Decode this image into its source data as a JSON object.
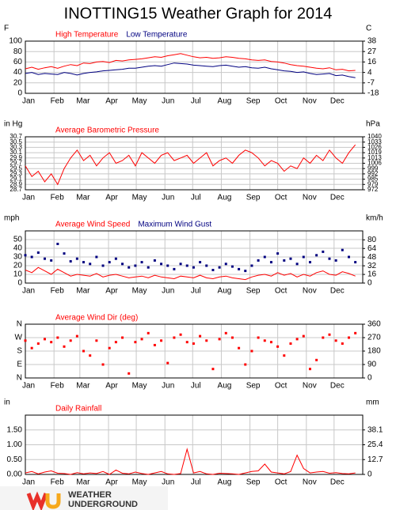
{
  "page": {
    "title": "INOTTING15 Weather Graph for 2014",
    "logo_top": "WEATHER",
    "logo_bottom": "UNDERGROUND"
  },
  "chart_data": [
    {
      "type": "line",
      "ylabel": "F",
      "y2label": "C",
      "x": [
        1,
        8,
        15,
        22,
        29,
        36,
        43,
        50,
        57,
        64,
        71,
        78,
        85,
        92,
        99,
        106,
        113,
        120,
        127,
        134,
        141,
        148,
        155,
        162,
        169,
        176,
        183,
        190,
        197,
        204,
        211,
        218,
        225,
        232,
        239,
        246,
        253,
        260,
        267,
        274,
        281,
        288,
        295,
        302,
        309,
        316,
        323,
        330,
        337,
        344,
        351,
        358
      ],
      "xlim": [
        1,
        366
      ],
      "xticks": [
        {
          "value": 1,
          "label": "Jan"
        },
        {
          "value": 32,
          "label": "Feb"
        },
        {
          "value": 60,
          "label": "Mar"
        },
        {
          "value": 91,
          "label": "Apr"
        },
        {
          "value": 121,
          "label": "May"
        },
        {
          "value": 152,
          "label": "Jun"
        },
        {
          "value": 182,
          "label": "Jul"
        },
        {
          "value": 213,
          "label": "Aug"
        },
        {
          "value": 244,
          "label": "Sep"
        },
        {
          "value": 274,
          "label": "Oct"
        },
        {
          "value": 305,
          "label": "Nov"
        },
        {
          "value": 335,
          "label": "Dec"
        }
      ],
      "ylim": [
        0,
        100
      ],
      "yticks": [
        0,
        20,
        40,
        60,
        80,
        100
      ],
      "y2lim": [
        -17.8,
        37.8
      ],
      "y2ticks": [
        {
          "value": -17.8,
          "label": "-18"
        },
        {
          "value": -6.7,
          "label": "-7"
        },
        {
          "value": 4.4,
          "label": "4"
        },
        {
          "value": 15.6,
          "label": "16"
        },
        {
          "value": 26.7,
          "label": "27"
        },
        {
          "value": 37.8,
          "label": "38"
        }
      ],
      "grid": true,
      "series": [
        {
          "name": "High Temperature",
          "color": "#ff0000",
          "values": [
            47,
            50,
            46,
            49,
            51,
            48,
            52,
            55,
            53,
            58,
            57,
            60,
            61,
            59,
            63,
            62,
            64,
            65,
            66,
            68,
            70,
            69,
            72,
            74,
            76,
            73,
            70,
            68,
            69,
            67,
            68,
            70,
            69,
            67,
            66,
            64,
            63,
            64,
            61,
            60,
            58,
            55,
            53,
            52,
            50,
            48,
            47,
            49,
            45,
            46,
            43,
            44
          ]
        },
        {
          "name": "Low Temperature",
          "color": "#000080",
          "values": [
            38,
            40,
            36,
            38,
            37,
            36,
            40,
            38,
            35,
            38,
            40,
            41,
            43,
            44,
            45,
            46,
            48,
            48,
            50,
            52,
            53,
            52,
            55,
            58,
            57,
            56,
            54,
            53,
            52,
            51,
            53,
            54,
            52,
            50,
            51,
            49,
            48,
            50,
            47,
            45,
            43,
            42,
            40,
            41,
            38,
            36,
            37,
            38,
            34,
            35,
            32,
            30
          ]
        }
      ]
    },
    {
      "type": "line",
      "ylabel": "in Hg",
      "y2label": "hPa",
      "x": [
        1,
        8,
        15,
        22,
        29,
        36,
        43,
        50,
        57,
        64,
        71,
        78,
        85,
        92,
        99,
        106,
        113,
        120,
        127,
        134,
        141,
        148,
        155,
        162,
        169,
        176,
        183,
        190,
        197,
        204,
        211,
        218,
        225,
        232,
        239,
        246,
        253,
        260,
        267,
        274,
        281,
        288,
        295,
        302,
        309,
        316,
        323,
        330,
        337,
        344,
        351,
        358
      ],
      "xlim": [
        1,
        366
      ],
      "xticks": [
        {
          "value": 1,
          "label": "Jan"
        },
        {
          "value": 32,
          "label": "Feb"
        },
        {
          "value": 60,
          "label": "Mar"
        },
        {
          "value": 91,
          "label": "Apr"
        },
        {
          "value": 121,
          "label": "May"
        },
        {
          "value": 152,
          "label": "Jun"
        },
        {
          "value": 182,
          "label": "Jul"
        },
        {
          "value": 213,
          "label": "Aug"
        },
        {
          "value": 244,
          "label": "Sep"
        },
        {
          "value": 274,
          "label": "Oct"
        },
        {
          "value": 305,
          "label": "Nov"
        },
        {
          "value": 335,
          "label": "Dec"
        }
      ],
      "ylim": [
        28.7,
        30.7
      ],
      "yticks": [
        28.7,
        28.9,
        29.1,
        29.3,
        29.5,
        29.7,
        29.9,
        30.1,
        30.3,
        30.5,
        30.7
      ],
      "y2lim": [
        971.9,
        1039.6
      ],
      "y2ticks": [
        {
          "value": 971.9,
          "label": "972"
        },
        {
          "value": 978.7,
          "label": "979"
        },
        {
          "value": 985.4,
          "label": "985"
        },
        {
          "value": 992.2,
          "label": "992"
        },
        {
          "value": 999.0,
          "label": "999"
        },
        {
          "value": 1005.8,
          "label": "1006"
        },
        {
          "value": 1012.5,
          "label": "1013"
        },
        {
          "value": 1019.3,
          "label": "1019"
        },
        {
          "value": 1026.1,
          "label": "1026"
        },
        {
          "value": 1032.8,
          "label": "1033"
        },
        {
          "value": 1039.6,
          "label": "1040"
        }
      ],
      "grid": true,
      "series": [
        {
          "name": "Average Barometric Pressure",
          "color": "#ff0000",
          "values": [
            29.6,
            29.2,
            29.4,
            29.0,
            29.3,
            28.9,
            29.5,
            29.9,
            30.2,
            29.8,
            30.0,
            29.6,
            29.9,
            30.1,
            29.7,
            29.8,
            30.0,
            29.6,
            30.1,
            29.9,
            29.7,
            30.0,
            30.1,
            29.8,
            29.9,
            30.0,
            29.7,
            29.9,
            30.1,
            29.6,
            29.8,
            29.9,
            29.7,
            30.0,
            30.2,
            30.1,
            29.9,
            29.6,
            29.8,
            29.7,
            29.4,
            29.6,
            29.5,
            29.9,
            29.7,
            30.0,
            29.8,
            30.2,
            29.9,
            29.7,
            30.1,
            30.4
          ]
        }
      ]
    },
    {
      "type": "line",
      "ylabel": "mph",
      "y2label": "km/h",
      "x": [
        1,
        8,
        15,
        22,
        29,
        36,
        43,
        50,
        57,
        64,
        71,
        78,
        85,
        92,
        99,
        106,
        113,
        120,
        127,
        134,
        141,
        148,
        155,
        162,
        169,
        176,
        183,
        190,
        197,
        204,
        211,
        218,
        225,
        232,
        239,
        246,
        253,
        260,
        267,
        274,
        281,
        288,
        295,
        302,
        309,
        316,
        323,
        330,
        337,
        344,
        351,
        358
      ],
      "xlim": [
        1,
        366
      ],
      "xticks": [
        {
          "value": 1,
          "label": "Jan"
        },
        {
          "value": 32,
          "label": "Feb"
        },
        {
          "value": 60,
          "label": "Mar"
        },
        {
          "value": 91,
          "label": "Apr"
        },
        {
          "value": 121,
          "label": "May"
        },
        {
          "value": 152,
          "label": "Jun"
        },
        {
          "value": 182,
          "label": "Jul"
        },
        {
          "value": 213,
          "label": "Aug"
        },
        {
          "value": 244,
          "label": "Sep"
        },
        {
          "value": 274,
          "label": "Oct"
        },
        {
          "value": 305,
          "label": "Nov"
        },
        {
          "value": 335,
          "label": "Dec"
        }
      ],
      "ylim": [
        0,
        60
      ],
      "yticks": [
        0,
        10,
        20,
        30,
        40,
        50
      ],
      "y2lim": [
        0,
        96.6
      ],
      "y2ticks": [
        0,
        16,
        32,
        48,
        64,
        80
      ],
      "grid": true,
      "series": [
        {
          "name": "Average Wind Speed",
          "color": "#ff0000",
          "type": "line",
          "values": [
            15,
            12,
            18,
            14,
            10,
            16,
            12,
            8,
            10,
            9,
            8,
            11,
            7,
            9,
            10,
            8,
            6,
            7,
            8,
            6,
            9,
            7,
            6,
            5,
            8,
            7,
            6,
            9,
            6,
            5,
            7,
            8,
            6,
            5,
            4,
            7,
            9,
            10,
            8,
            12,
            9,
            11,
            7,
            10,
            8,
            12,
            14,
            10,
            9,
            13,
            11,
            8
          ]
        },
        {
          "name": "Maximum Wind Gust",
          "color": "#000080",
          "type": "scatter",
          "values": [
            32,
            30,
            35,
            28,
            26,
            45,
            34,
            25,
            28,
            24,
            22,
            30,
            20,
            24,
            28,
            22,
            18,
            20,
            24,
            18,
            26,
            22,
            20,
            16,
            22,
            20,
            18,
            24,
            20,
            15,
            18,
            22,
            19,
            16,
            14,
            20,
            26,
            30,
            24,
            34,
            26,
            28,
            22,
            30,
            24,
            32,
            36,
            28,
            26,
            38,
            30,
            24
          ]
        }
      ]
    },
    {
      "type": "scatter",
      "x": [
        1,
        8,
        15,
        22,
        29,
        36,
        43,
        50,
        57,
        64,
        71,
        78,
        85,
        92,
        99,
        106,
        113,
        120,
        127,
        134,
        141,
        148,
        155,
        162,
        169,
        176,
        183,
        190,
        197,
        204,
        211,
        218,
        225,
        232,
        239,
        246,
        253,
        260,
        267,
        274,
        281,
        288,
        295,
        302,
        309,
        316,
        323,
        330,
        337,
        344,
        351,
        358
      ],
      "xlim": [
        1,
        366
      ],
      "xticks": [
        {
          "value": 1,
          "label": "Jan"
        },
        {
          "value": 32,
          "label": "Feb"
        },
        {
          "value": 60,
          "label": "Mar"
        },
        {
          "value": 91,
          "label": "Apr"
        },
        {
          "value": 121,
          "label": "May"
        },
        {
          "value": 152,
          "label": "Jun"
        },
        {
          "value": 182,
          "label": "Jul"
        },
        {
          "value": 213,
          "label": "Aug"
        },
        {
          "value": 244,
          "label": "Sep"
        },
        {
          "value": 274,
          "label": "Oct"
        },
        {
          "value": 305,
          "label": "Nov"
        },
        {
          "value": 335,
          "label": "Dec"
        }
      ],
      "ylim": [
        0,
        360
      ],
      "yticks": [
        {
          "value": 0,
          "label": "N"
        },
        {
          "value": 90,
          "label": "E"
        },
        {
          "value": 180,
          "label": "S"
        },
        {
          "value": 270,
          "label": "W"
        },
        {
          "value": 360,
          "label": "N"
        }
      ],
      "y2lim": [
        0,
        360
      ],
      "y2ticks": [
        0,
        90,
        180,
        270,
        360
      ],
      "grid": true,
      "series": [
        {
          "name": "Average Wind Dir (deg)",
          "color": "#ff0000",
          "values": [
            250,
            200,
            230,
            260,
            240,
            270,
            210,
            250,
            280,
            180,
            150,
            250,
            90,
            200,
            240,
            270,
            30,
            240,
            260,
            300,
            220,
            250,
            100,
            270,
            290,
            240,
            230,
            280,
            250,
            60,
            260,
            300,
            270,
            200,
            90,
            180,
            270,
            250,
            240,
            210,
            150,
            230,
            260,
            280,
            60,
            120,
            270,
            290,
            250,
            230,
            270,
            300
          ]
        }
      ]
    },
    {
      "type": "line",
      "ylabel": "in",
      "y2label": "mm",
      "x": [
        1,
        8,
        15,
        22,
        29,
        36,
        43,
        50,
        57,
        64,
        71,
        78,
        85,
        92,
        99,
        106,
        113,
        120,
        127,
        134,
        141,
        148,
        155,
        162,
        169,
        176,
        183,
        190,
        197,
        204,
        211,
        218,
        225,
        232,
        239,
        246,
        253,
        260,
        267,
        274,
        281,
        288,
        295,
        302,
        309,
        316,
        323,
        330,
        337,
        344,
        351,
        358
      ],
      "xlim": [
        1,
        366
      ],
      "xticks": [
        {
          "value": 1,
          "label": "Jan"
        },
        {
          "value": 32,
          "label": "Feb"
        },
        {
          "value": 60,
          "label": "Mar"
        },
        {
          "value": 91,
          "label": "Apr"
        },
        {
          "value": 121,
          "label": "May"
        },
        {
          "value": 152,
          "label": "Jun"
        },
        {
          "value": 182,
          "label": "Jul"
        },
        {
          "value": 213,
          "label": "Aug"
        },
        {
          "value": 244,
          "label": "Sep"
        },
        {
          "value": 274,
          "label": "Oct"
        },
        {
          "value": 305,
          "label": "Nov"
        },
        {
          "value": 335,
          "label": "Dec"
        }
      ],
      "ylim": [
        0,
        2
      ],
      "yticks": [
        {
          "value": 0,
          "label": "0.00"
        },
        {
          "value": 0.5,
          "label": "0.50"
        },
        {
          "value": 1,
          "label": "1.00"
        },
        {
          "value": 1.5,
          "label": "1.50"
        }
      ],
      "y2lim": [
        0,
        50.8
      ],
      "y2ticks": [
        {
          "value": 0,
          "label": "0"
        },
        12.7,
        25.4,
        38.1
      ],
      "grid": true,
      "series": [
        {
          "name": "Daily Rainfall",
          "color": "#ff0000",
          "values": [
            0.05,
            0.1,
            0.02,
            0.08,
            0.12,
            0.04,
            0.03,
            0,
            0.06,
            0.02,
            0.05,
            0.03,
            0.1,
            0,
            0.15,
            0.04,
            0.02,
            0.08,
            0.03,
            0,
            0.05,
            0.1,
            0.02,
            0,
            0.03,
            0.85,
            0.05,
            0.1,
            0.02,
            0,
            0.04,
            0.03,
            0.02,
            0,
            0.05,
            0.1,
            0.12,
            0.35,
            0.08,
            0.05,
            0.02,
            0.1,
            0.65,
            0.2,
            0.05,
            0.08,
            0.1,
            0.04,
            0.06,
            0.03,
            0.02,
            0.05
          ]
        }
      ]
    }
  ]
}
